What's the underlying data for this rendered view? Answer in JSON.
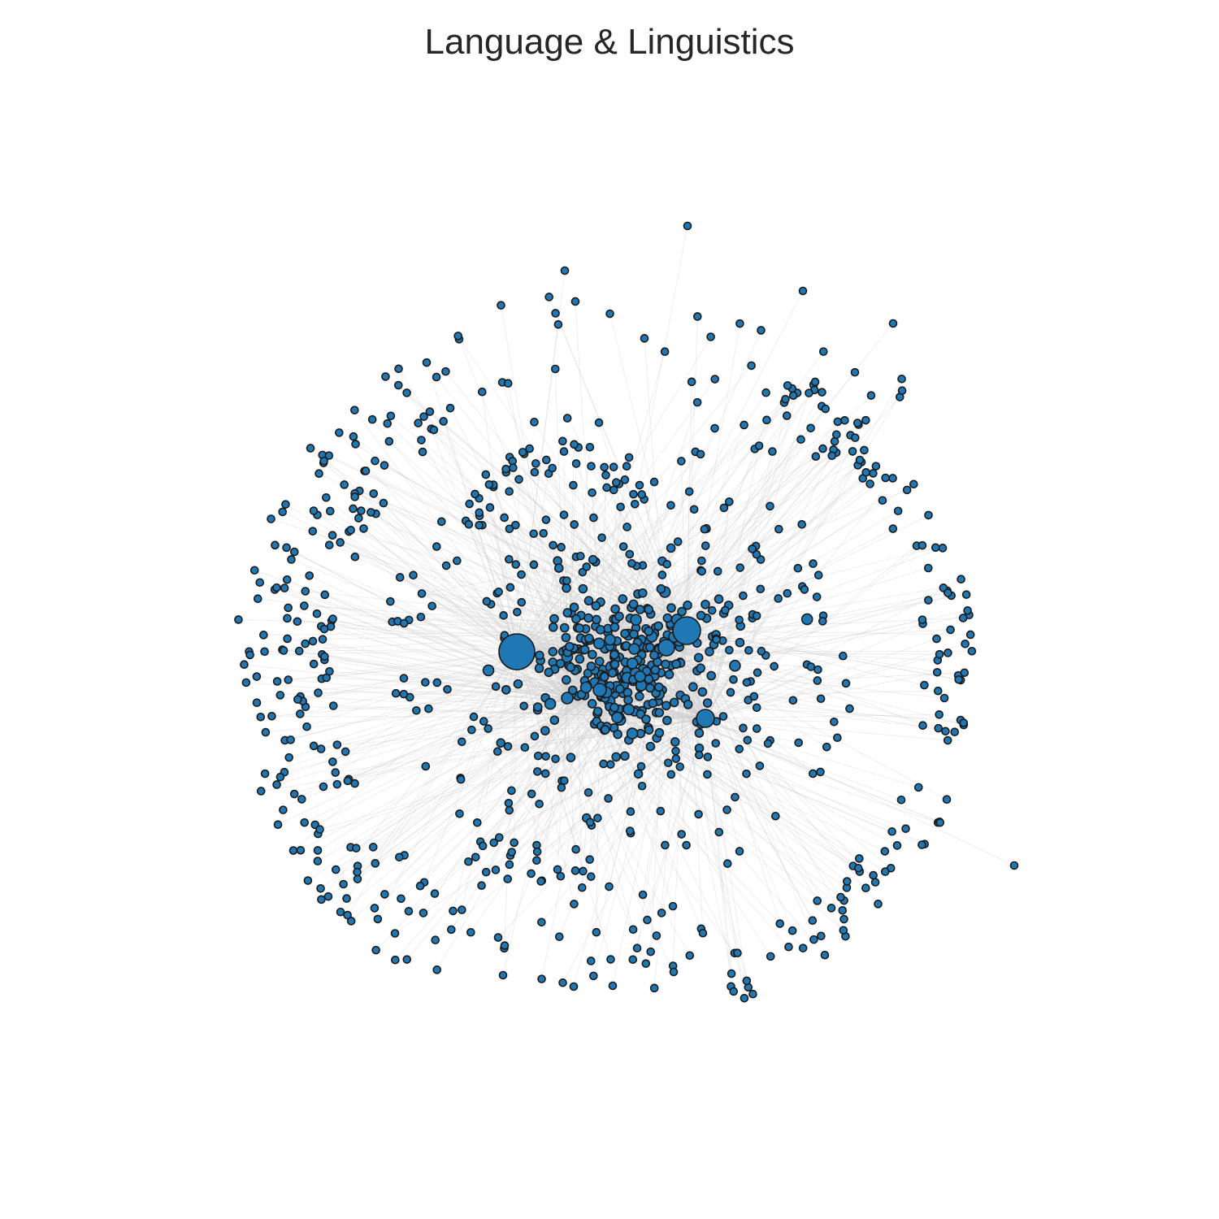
{
  "title": "Language & Linguistics",
  "colors": {
    "node_fill": "#1f77b4",
    "node_stroke": "#1a1a1a",
    "edge": "#cfcfcf",
    "background": "#ffffff",
    "title_text": "#262626"
  },
  "graph": {
    "layout": "force-directed",
    "hub_count": 6,
    "approx_node_count": 900
  }
}
